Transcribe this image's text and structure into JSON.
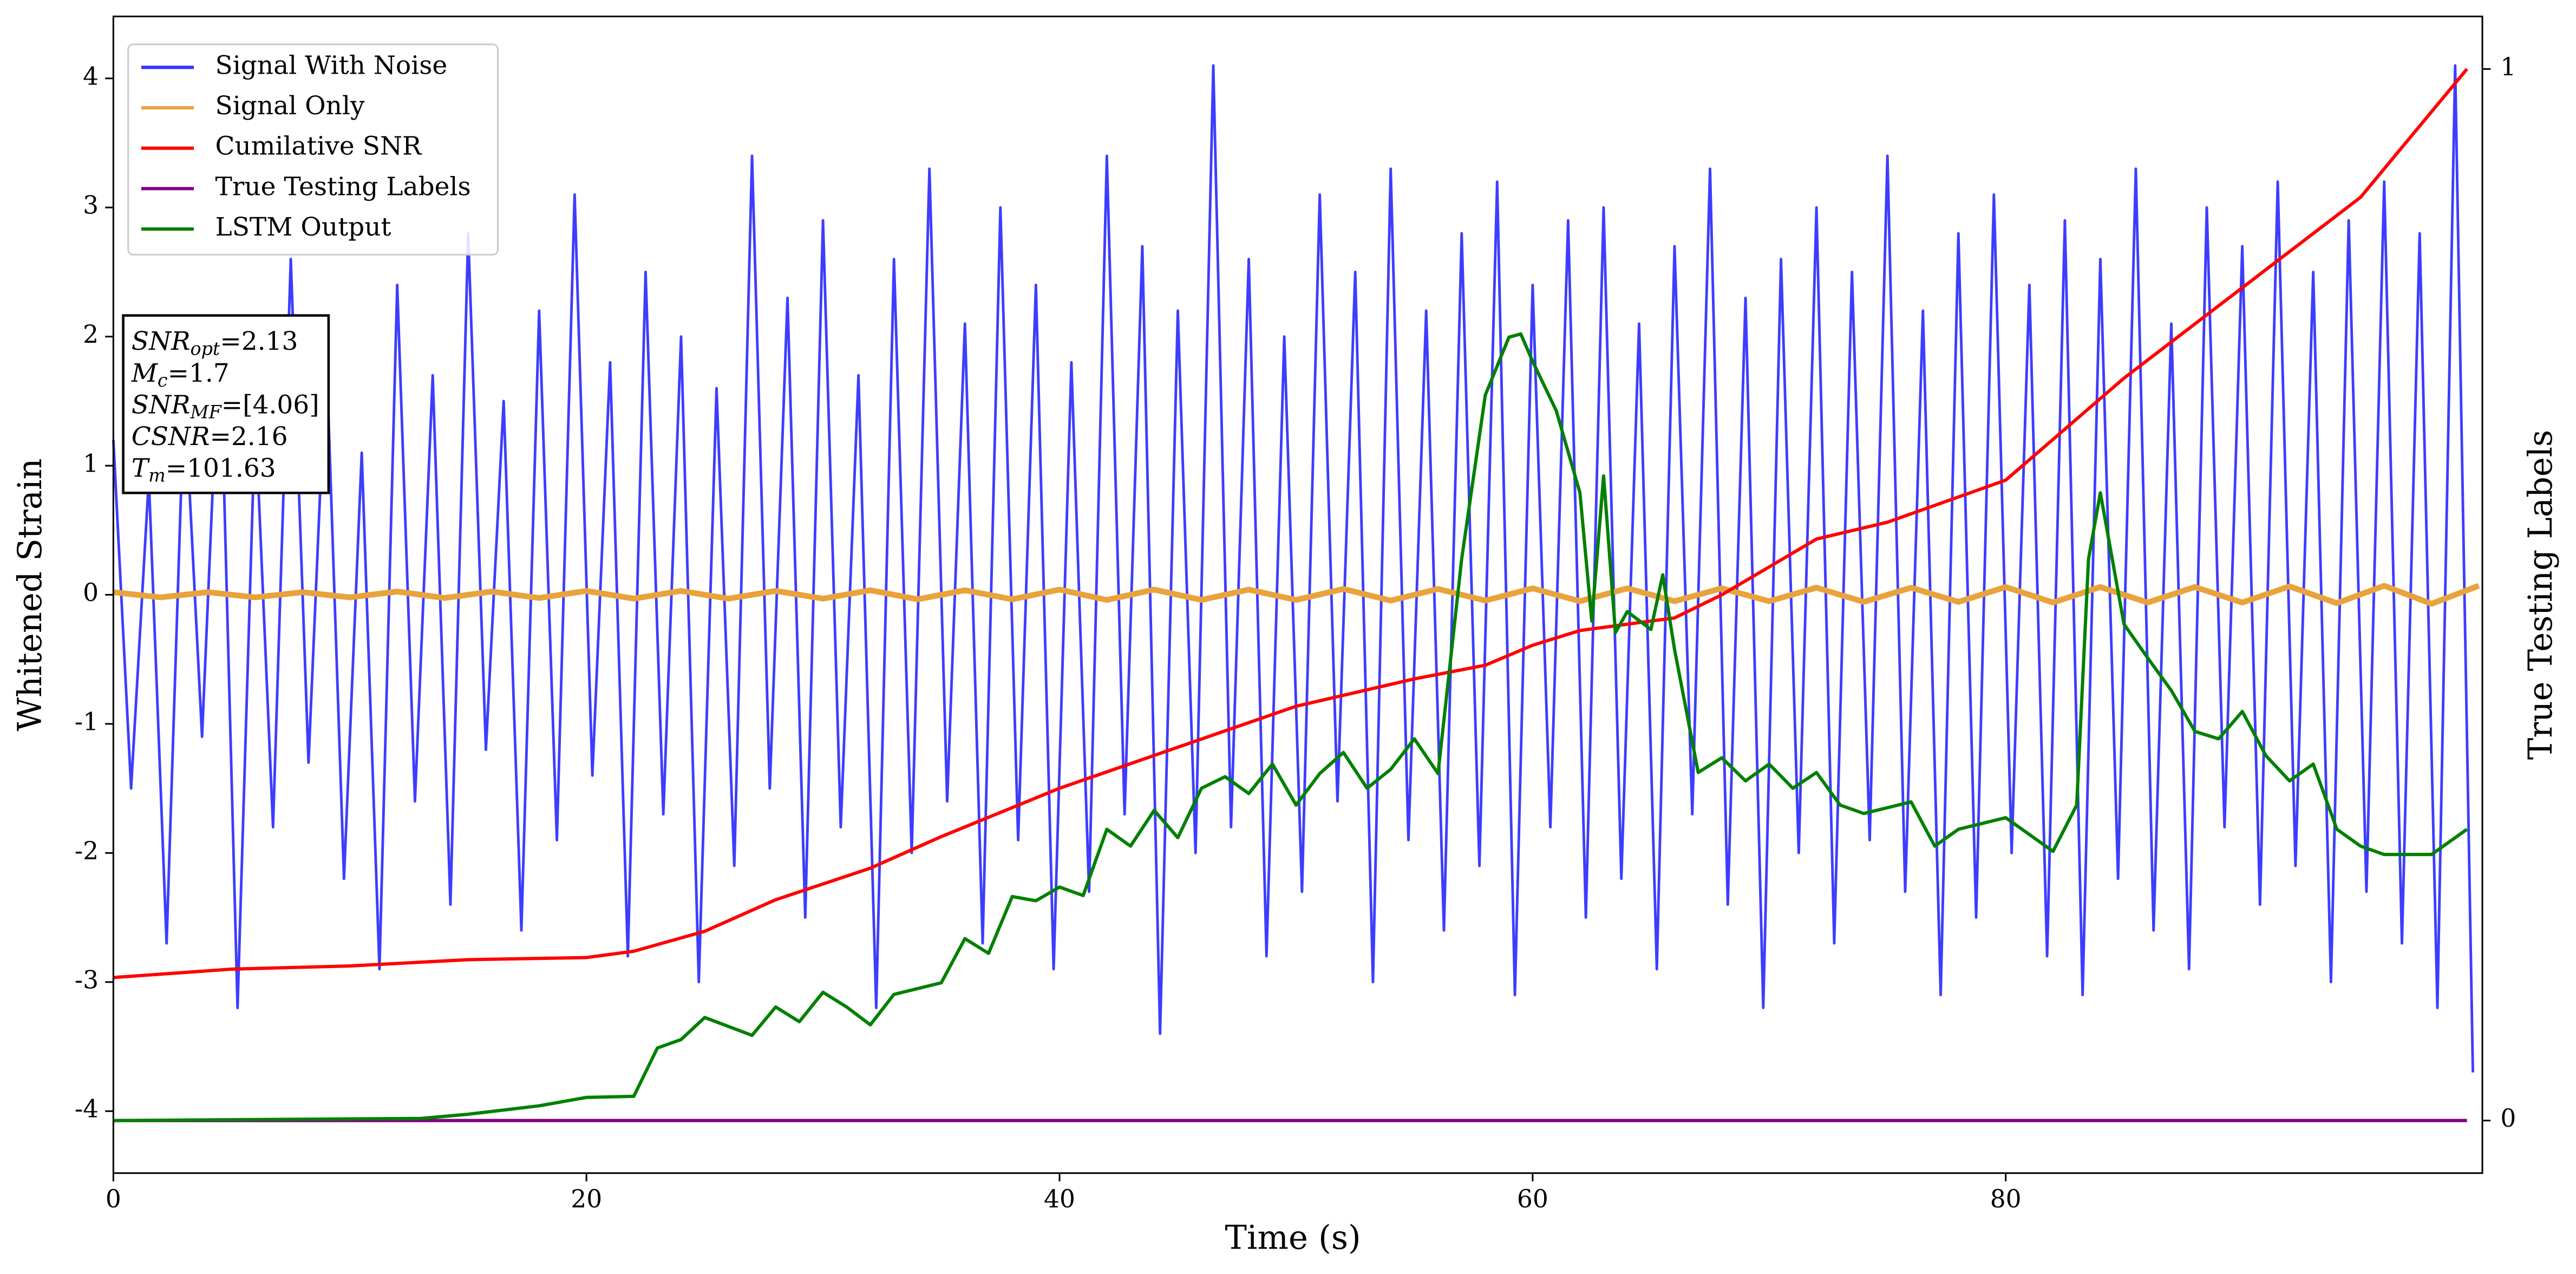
{
  "chart_data": {
    "type": "line",
    "xlabel": "Time (s)",
    "ylabel": "Whitened Strain",
    "y2label": "True Testing Labels",
    "xlim": [
      0,
      100.15
    ],
    "ylim": [
      -4.48,
      4.48
    ],
    "y2lim": [
      -0.05,
      1.05
    ],
    "xticks": [
      0,
      20,
      40,
      60,
      80
    ],
    "yticks": [
      -4,
      -3,
      -2,
      -1,
      0,
      1,
      2,
      3,
      4
    ],
    "y2ticks": [
      0,
      1
    ],
    "legend": "upper-left",
    "series": [
      {
        "name": "Signal With Noise",
        "color": "#3333ff",
        "x": [
          0,
          0.75,
          1.5,
          2.25,
          3,
          3.75,
          4.5,
          5.25,
          6,
          6.75,
          7.5,
          8.25,
          9,
          9.75,
          10.5,
          11.25,
          12,
          12.75,
          13.5,
          14.25,
          15,
          15.75,
          16.5,
          17.25,
          18,
          18.75,
          19.5,
          20.25,
          21,
          21.75,
          22.5,
          23.25,
          24,
          24.75,
          25.5,
          26.25,
          27,
          27.75,
          28.5,
          29.25,
          30,
          30.75,
          31.5,
          32.25,
          33,
          33.75,
          34.5,
          35.25,
          36,
          36.75,
          37.5,
          38.25,
          39,
          39.75,
          40.5,
          41.25,
          42,
          42.75,
          43.5,
          44.25,
          45,
          45.75,
          46.5,
          47.25,
          48,
          48.75,
          49.5,
          50.25,
          51,
          51.75,
          52.5,
          53.25,
          54,
          54.75,
          55.5,
          56.25,
          57,
          57.75,
          58.5,
          59.25,
          60,
          60.75,
          61.5,
          62.25,
          63,
          63.75,
          64.5,
          65.25,
          66,
          66.75,
          67.5,
          68.25,
          69,
          69.75,
          70.5,
          71.25,
          72,
          72.75,
          73.5,
          74.25,
          75,
          75.75,
          76.5,
          77.25,
          78,
          78.75,
          79.5,
          80.25,
          81,
          81.75,
          82.5,
          83.25,
          84,
          84.75,
          85.5,
          86.25,
          87,
          87.75,
          88.5,
          89.25,
          90,
          90.75,
          91.5,
          92.25,
          93,
          93.75,
          94.5,
          95.25,
          96,
          96.75,
          97.5,
          98.25,
          99,
          99.75
        ],
        "values": [
          1.2,
          -1.5,
          0.9,
          -2.7,
          1.6,
          -1.1,
          2.1,
          -3.2,
          1.4,
          -1.8,
          2.6,
          -1.3,
          1.9,
          -2.2,
          1.1,
          -2.9,
          2.4,
          -1.6,
          1.7,
          -2.4,
          2.8,
          -1.2,
          1.5,
          -2.6,
          2.2,
          -1.9,
          3.1,
          -1.4,
          1.8,
          -2.8,
          2.5,
          -1.7,
          2.0,
          -3.0,
          1.6,
          -2.1,
          3.4,
          -1.5,
          2.3,
          -2.5,
          2.9,
          -1.8,
          1.7,
          -3.2,
          2.6,
          -2.0,
          3.3,
          -1.6,
          2.1,
          -2.7,
          3.0,
          -1.9,
          2.4,
          -2.9,
          1.8,
          -2.3,
          3.4,
          -1.7,
          2.7,
          -3.4,
          2.2,
          -2.0,
          4.1,
          -1.8,
          2.6,
          -2.8,
          2.0,
          -2.3,
          3.1,
          -1.6,
          2.5,
          -3.0,
          3.3,
          -1.9,
          2.2,
          -2.6,
          2.8,
          -2.1,
          3.2,
          -3.1,
          2.4,
          -1.8,
          2.9,
          -2.5,
          3.0,
          -2.2,
          2.1,
          -2.9,
          2.7,
          -1.7,
          3.3,
          -2.4,
          2.3,
          -3.2,
          2.6,
          -2.0,
          3.0,
          -2.7,
          2.5,
          -1.9,
          3.4,
          -2.3,
          2.2,
          -3.1,
          2.8,
          -2.5,
          3.1,
          -2.0,
          2.4,
          -2.8,
          2.9,
          -3.1,
          2.6,
          -2.2,
          3.3,
          -2.6,
          2.1,
          -2.9,
          3.0,
          -1.8,
          2.7,
          -2.4,
          3.2,
          -2.1,
          2.5,
          -3.0,
          2.9,
          -2.3,
          3.2,
          -2.7,
          2.8,
          -3.2,
          4.1,
          -3.7
        ]
      },
      {
        "name": "Signal Only",
        "color": "#e8a33c",
        "x": [
          0,
          2,
          4,
          6,
          8,
          10,
          12,
          14,
          16,
          18,
          20,
          22,
          24,
          26,
          28,
          30,
          32,
          34,
          36,
          38,
          40,
          42,
          44,
          46,
          48,
          50,
          52,
          54,
          56,
          58,
          60,
          62,
          64,
          66,
          68,
          70,
          72,
          74,
          76,
          78,
          80,
          82,
          84,
          86,
          88,
          90,
          92,
          94,
          96,
          98,
          100
        ],
        "values": [
          0.02,
          -0.02,
          0.02,
          -0.02,
          0.02,
          -0.02,
          0.025,
          -0.025,
          0.025,
          -0.025,
          0.03,
          -0.03,
          0.03,
          -0.03,
          0.03,
          -0.03,
          0.035,
          -0.035,
          0.035,
          -0.035,
          0.04,
          -0.04,
          0.04,
          -0.04,
          0.04,
          -0.04,
          0.045,
          -0.045,
          0.045,
          -0.045,
          0.05,
          -0.05,
          0.05,
          -0.05,
          0.05,
          -0.05,
          0.055,
          -0.055,
          0.055,
          -0.055,
          0.06,
          -0.06,
          0.06,
          -0.06,
          0.06,
          -0.06,
          0.065,
          -0.065,
          0.07,
          -0.07,
          0.07
        ]
      },
      {
        "name": "Cumilative SNR",
        "color": "#ff0000",
        "axis": "y2",
        "x": [
          0,
          5,
          10,
          15,
          20,
          22,
          25,
          28,
          32,
          35,
          40,
          45,
          50,
          55,
          58,
          60,
          62,
          66,
          68,
          72,
          75,
          80,
          85,
          90,
          95,
          99.5
        ],
        "values": [
          0.136,
          0.144,
          0.147,
          0.153,
          0.155,
          0.161,
          0.18,
          0.21,
          0.24,
          0.27,
          0.316,
          0.355,
          0.394,
          0.42,
          0.433,
          0.452,
          0.466,
          0.478,
          0.5,
          0.553,
          0.569,
          0.609,
          0.706,
          0.792,
          0.878,
          1.0
        ]
      },
      {
        "name": "True Testing Labels",
        "color": "#800080",
        "axis": "y2",
        "x": [
          0,
          99.5
        ],
        "values": [
          0,
          0
        ]
      },
      {
        "name": "LSTM Output",
        "color": "#008000",
        "axis": "y2",
        "x": [
          0,
          13,
          15,
          18,
          20,
          22,
          23,
          24,
          25,
          27,
          28,
          29,
          30,
          31,
          32,
          33,
          35,
          36,
          37,
          38,
          39,
          40,
          41,
          42,
          43,
          44,
          45,
          46,
          47,
          48,
          49,
          50,
          51,
          52,
          53,
          54,
          55,
          56,
          57,
          58,
          59,
          59.5,
          60,
          61,
          62,
          62.5,
          63,
          63.5,
          64,
          65,
          65.5,
          66,
          67,
          68,
          69,
          70,
          71,
          72,
          73,
          74,
          76,
          77,
          78,
          80,
          82,
          83,
          83.5,
          84,
          85,
          86,
          87,
          88,
          89,
          90,
          91,
          92,
          93,
          94,
          95,
          96,
          98,
          99.5
        ],
        "values": [
          0,
          0.002,
          0.006,
          0.014,
          0.022,
          0.023,
          0.069,
          0.077,
          0.098,
          0.081,
          0.108,
          0.094,
          0.122,
          0.108,
          0.091,
          0.12,
          0.131,
          0.173,
          0.159,
          0.213,
          0.209,
          0.222,
          0.214,
          0.277,
          0.261,
          0.295,
          0.269,
          0.316,
          0.327,
          0.311,
          0.339,
          0.3,
          0.33,
          0.35,
          0.316,
          0.334,
          0.363,
          0.33,
          0.534,
          0.69,
          0.745,
          0.748,
          0.722,
          0.675,
          0.597,
          0.475,
          0.613,
          0.464,
          0.484,
          0.467,
          0.519,
          0.448,
          0.331,
          0.345,
          0.323,
          0.339,
          0.316,
          0.331,
          0.3,
          0.292,
          0.303,
          0.261,
          0.277,
          0.288,
          0.256,
          0.3,
          0.534,
          0.597,
          0.472,
          0.44,
          0.409,
          0.37,
          0.363,
          0.389,
          0.347,
          0.323,
          0.339,
          0.277,
          0.261,
          0.253,
          0.253,
          0.277
        ]
      }
    ],
    "annotation": [
      {
        "main": "SNR",
        "sub": "opt",
        "rest": "=2.13"
      },
      {
        "main": "M",
        "sub": "c",
        "rest": "=1.7"
      },
      {
        "main": "SNR",
        "sub": "MF",
        "rest": "=[4.06]"
      },
      {
        "main": "CSNR",
        "rest": "=2.16"
      },
      {
        "main": "T",
        "sub": "m",
        "rest": "=101.63"
      }
    ]
  }
}
